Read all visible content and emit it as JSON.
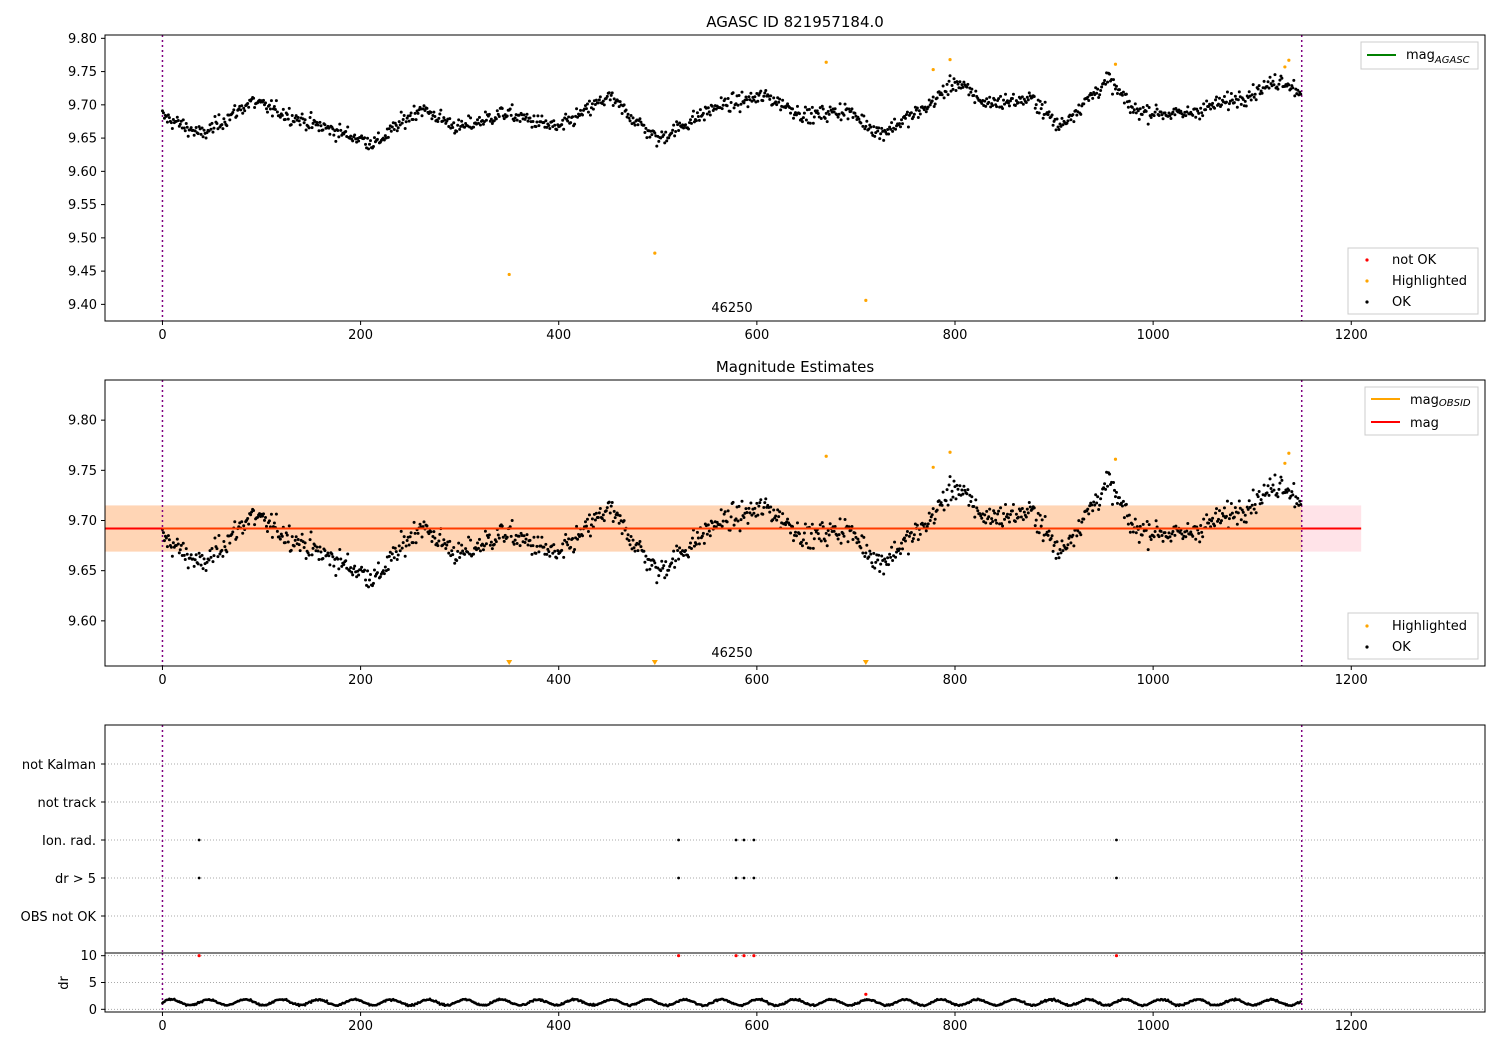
{
  "chart_data": [
    {
      "type": "scatter",
      "title": "AGASC ID 821957184.0",
      "obsid_label": "46250",
      "xlim": [
        -58,
        1335
      ],
      "ylim": [
        9.375,
        9.805
      ],
      "x_ticks": [
        0,
        200,
        400,
        600,
        800,
        1000,
        1200
      ],
      "y_ticks": [
        9.4,
        9.45,
        9.5,
        9.55,
        9.6,
        9.65,
        9.7,
        9.75,
        9.8
      ],
      "y_tick_labels": [
        "9.40",
        "9.45",
        "9.50",
        "9.55",
        "9.60",
        "9.65",
        "9.70",
        "9.75",
        "9.80"
      ],
      "vlines": [
        0,
        1150
      ],
      "line_legend": [
        {
          "name": "mag",
          "subscript": "AGASC",
          "color": "#008000"
        }
      ],
      "point_legend": [
        {
          "name": "not OK",
          "color": "#ff0000"
        },
        {
          "name": "Highlighted",
          "color": "#ffa500"
        },
        {
          "name": "OK",
          "color": "#000000"
        }
      ],
      "series": [
        {
          "name": "OK",
          "color": "#000000",
          "n": 1150,
          "x_range": [
            0,
            1150
          ],
          "y_mean_approx": 9.693
        },
        {
          "name": "Highlighted",
          "color": "#ffa500",
          "points": [
            [
              350,
              9.445
            ],
            [
              497,
              9.477
            ],
            [
              670,
              9.764
            ],
            [
              710,
              9.406
            ],
            [
              778,
              9.753
            ],
            [
              795,
              9.768
            ],
            [
              962,
              9.761
            ],
            [
              1133,
              9.757
            ],
            [
              1137,
              9.767
            ]
          ]
        }
      ]
    },
    {
      "type": "scatter",
      "title": "Magnitude Estimates",
      "obsid_label": "46250",
      "xlim": [
        -58,
        1335
      ],
      "ylim": [
        9.555,
        9.84
      ],
      "x_ticks": [
        0,
        200,
        400,
        600,
        800,
        1000,
        1200
      ],
      "y_ticks": [
        9.6,
        9.65,
        9.7,
        9.75,
        9.8
      ],
      "y_tick_labels": [
        "9.60",
        "9.65",
        "9.70",
        "9.75",
        "9.80"
      ],
      "vlines": [
        0,
        1150
      ],
      "line_legend": [
        {
          "name": "mag",
          "subscript": "OBSID",
          "color": "#ffa500"
        },
        {
          "name": "mag",
          "subscript": "",
          "color": "#ff0000"
        }
      ],
      "point_legend": [
        {
          "name": "Highlighted",
          "color": "#ffa500"
        },
        {
          "name": "OK",
          "color": "#000000"
        }
      ],
      "mag_line": 9.692,
      "mag_band": [
        9.669,
        9.715
      ],
      "mag_band_x": [
        -58,
        1210
      ],
      "obsid_band": [
        9.669,
        9.715
      ],
      "obsid_band_x": [
        0,
        1150
      ],
      "off_scale_markers_x": [
        350,
        497,
        710
      ],
      "series": [
        {
          "name": "OK",
          "color": "#000000",
          "n": 1150,
          "x_range": [
            0,
            1150
          ],
          "y_mean_approx": 9.693
        },
        {
          "name": "Highlighted",
          "color": "#ffa500",
          "points": [
            [
              670,
              9.764
            ],
            [
              778,
              9.753
            ],
            [
              795,
              9.768
            ],
            [
              962,
              9.761
            ],
            [
              1133,
              9.757
            ],
            [
              1137,
              9.767
            ]
          ]
        }
      ]
    },
    {
      "type": "scatter",
      "xlim": [
        -58,
        1335
      ],
      "categories": [
        "not Kalman",
        "not track",
        "Ion. rad.",
        "dr > 5",
        "OBS not OK"
      ],
      "vlines": [
        0,
        1150
      ],
      "flags": {
        "Ion. rad.": [
          37,
          521,
          579,
          587,
          597,
          963
        ],
        "dr > 5": [
          37,
          521,
          579,
          587,
          597,
          963
        ]
      }
    },
    {
      "type": "scatter",
      "ylabel": "dr",
      "xlim": [
        -58,
        1335
      ],
      "ylim": [
        -0.5,
        10.5
      ],
      "x_ticks": [
        0,
        200,
        400,
        600,
        800,
        1000,
        1200
      ],
      "y_ticks": [
        0,
        5,
        10
      ],
      "y_tick_labels": [
        "0",
        "5",
        "10"
      ],
      "vlines": [
        0,
        1150
      ],
      "clipped_points_x": [
        37,
        521,
        579,
        587,
        597,
        963,
        710
      ],
      "series": [
        {
          "name": "dr",
          "color": "#000000",
          "n": 1150,
          "x_range": [
            0,
            1150
          ],
          "y_mean_approx": 1.2
        }
      ]
    }
  ]
}
